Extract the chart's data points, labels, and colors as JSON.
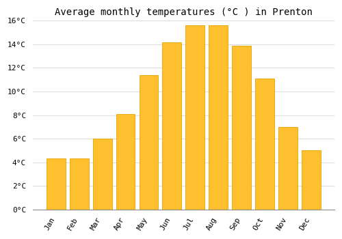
{
  "months": [
    "Jan",
    "Feb",
    "Mar",
    "Apr",
    "May",
    "Jun",
    "Jul",
    "Aug",
    "Sep",
    "Oct",
    "Nov",
    "Dec"
  ],
  "values": [
    4.3,
    4.3,
    6.0,
    8.1,
    11.4,
    14.2,
    15.6,
    15.6,
    13.9,
    11.1,
    7.0,
    5.0
  ],
  "bar_color": "#FFC030",
  "bar_edge_color": "#E8A000",
  "title": "Average monthly temperatures (°C ) in Prenton",
  "ylim": [
    0,
    16
  ],
  "ytick_step": 2,
  "background_color": "#FFFFFF",
  "grid_color": "#DDDDDD",
  "title_fontsize": 10,
  "tick_fontsize": 8,
  "font_family": "monospace"
}
